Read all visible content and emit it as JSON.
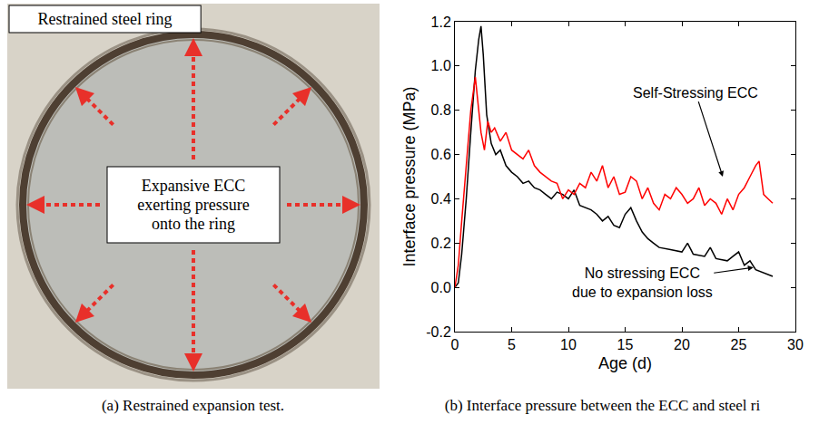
{
  "panel_a": {
    "label_box": "Restrained steel ring",
    "center_box": [
      "Expansive ECC",
      "exerting pressure",
      "onto the ring"
    ],
    "caption": "(a) Restrained expansion test."
  },
  "panel_b": {
    "caption": "(b) Interface pressure between the ECC and steel ri"
  },
  "chart_data": {
    "type": "line",
    "x_label": "Age (d)",
    "y_label": "Interface pressure (MPa)",
    "xlim": [
      0,
      30
    ],
    "xticks": [
      0,
      5,
      10,
      15,
      20,
      25,
      30
    ],
    "ylim": [
      -0.2,
      1.2
    ],
    "yticks": [
      -0.2,
      {
        "value": 0,
        "label": "0.0"
      },
      0.2,
      0.4,
      0.6,
      0.8,
      {
        "value": 1,
        "label": "1.0"
      },
      1.2
    ],
    "grid": false,
    "series": [
      {
        "color": "#000000",
        "x": [
          0,
          0.3,
          0.6,
          1,
          1.4,
          1.8,
          2.1,
          2.3,
          2.5,
          2.8,
          3.2,
          3.6,
          4,
          4.5,
          5,
          5.5,
          6,
          6.5,
          7,
          7.5,
          8,
          8.5,
          9,
          9.5,
          10,
          10.5,
          11,
          12,
          12.5,
          13,
          13.5,
          14,
          14.5,
          15,
          15.5,
          16,
          16.5,
          17,
          17.5,
          18,
          19,
          20,
          20.5,
          21,
          22,
          22.5,
          23,
          24,
          24.5,
          25,
          25.5,
          26,
          26.5,
          27,
          27.5,
          28
        ],
        "values": [
          0,
          0.02,
          0.15,
          0.4,
          0.7,
          0.98,
          1.12,
          1.18,
          1.05,
          0.78,
          0.65,
          0.6,
          0.62,
          0.55,
          0.52,
          0.5,
          0.47,
          0.48,
          0.45,
          0.44,
          0.42,
          0.4,
          0.43,
          0.42,
          0.4,
          0.44,
          0.37,
          0.35,
          0.33,
          0.3,
          0.32,
          0.28,
          0.27,
          0.33,
          0.36,
          0.3,
          0.25,
          0.22,
          0.2,
          0.18,
          0.17,
          0.16,
          0.2,
          0.15,
          0.14,
          0.18,
          0.13,
          0.12,
          0.14,
          0.16,
          0.1,
          0.12,
          0.08,
          0.07,
          0.06,
          0.05
        ]
      },
      {
        "color": "#ff0000",
        "x": [
          0,
          0.3,
          0.6,
          1,
          1.4,
          1.8,
          2.0,
          2.3,
          2.6,
          2.9,
          3.2,
          3.5,
          4,
          4.5,
          5,
          5.5,
          6,
          6.5,
          7,
          7.5,
          8,
          8.5,
          9,
          9.5,
          10,
          10.5,
          11,
          11.5,
          12,
          12.5,
          13,
          13.5,
          14,
          14.5,
          15,
          15.5,
          16,
          16.5,
          17,
          17.5,
          18,
          18.5,
          19,
          19.5,
          20,
          20.5,
          21,
          21.5,
          22,
          22.5,
          23,
          23.5,
          24,
          24.5,
          25,
          25.5,
          26,
          26.5,
          26.8,
          27.2,
          27.6,
          28
        ],
        "values": [
          0,
          0.1,
          0.3,
          0.55,
          0.8,
          0.95,
          0.85,
          0.7,
          0.62,
          0.75,
          0.7,
          0.72,
          0.66,
          0.7,
          0.62,
          0.6,
          0.58,
          0.62,
          0.55,
          0.52,
          0.5,
          0.48,
          0.47,
          0.4,
          0.44,
          0.42,
          0.47,
          0.45,
          0.52,
          0.48,
          0.55,
          0.45,
          0.5,
          0.42,
          0.43,
          0.5,
          0.48,
          0.4,
          0.45,
          0.38,
          0.35,
          0.42,
          0.4,
          0.45,
          0.42,
          0.38,
          0.4,
          0.45,
          0.37,
          0.4,
          0.38,
          0.33,
          0.4,
          0.35,
          0.42,
          0.45,
          0.5,
          0.55,
          0.57,
          0.42,
          0.4,
          0.38
        ]
      }
    ],
    "annotations": [
      {
        "text": [
          "Self-Stressing ECC"
        ]
      },
      {
        "text": [
          "No stressing ECC",
          "due to expansion loss"
        ]
      }
    ]
  }
}
